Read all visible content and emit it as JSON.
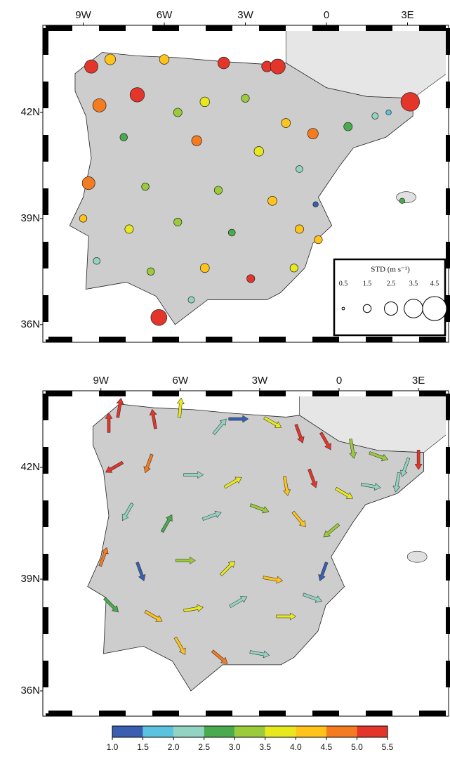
{
  "maps": [
    {
      "xticks": [
        {
          "value": -9,
          "label": "9W"
        },
        {
          "value": -6,
          "label": "6W"
        },
        {
          "value": -3,
          "label": "3W"
        },
        0,
        {
          "value": 3,
          "label": "3E"
        }
      ],
      "yticks": [
        {
          "value": 42,
          "label": "42N"
        },
        {
          "value": 39,
          "label": "39N"
        },
        {
          "value": 36,
          "label": "36N"
        }
      ],
      "legend": {
        "title": "STD (m s⁻¹)",
        "sizes": [
          0.5,
          1.5,
          2.5,
          3.5,
          4.5
        ]
      },
      "points": {
        "lon": [
          -8.7,
          -8.0,
          -6.0,
          -3.8,
          -2.2,
          -1.8,
          3.1,
          -8.4,
          -7.0,
          -5.5,
          -4.5,
          -3.0,
          -1.5,
          -0.5,
          0.8,
          1.8,
          2.3,
          -7.5,
          -4.8,
          -2.5,
          -1.0,
          -8.8,
          -6.7,
          -4.0,
          -2.0,
          -0.4,
          2.8,
          -9.0,
          -7.3,
          -5.5,
          -3.5,
          -1.0,
          -0.3,
          -8.5,
          -6.5,
          -4.5,
          -2.8,
          -1.2,
          -6.2,
          -5.0
        ],
        "lat": [
          43.3,
          43.5,
          43.5,
          43.4,
          43.3,
          43.3,
          42.3,
          42.2,
          42.5,
          42.0,
          42.3,
          42.4,
          41.7,
          41.4,
          41.6,
          41.9,
          42.0,
          41.3,
          41.2,
          40.9,
          40.4,
          40.0,
          39.9,
          39.8,
          39.5,
          39.4,
          39.5,
          39.0,
          38.7,
          38.9,
          38.6,
          38.7,
          38.4,
          37.8,
          37.5,
          37.6,
          37.3,
          37.6,
          36.2,
          36.7
        ],
        "std": [
          2.5,
          2.0,
          1.8,
          2.2,
          2.0,
          2.8,
          3.5,
          2.5,
          2.7,
          1.6,
          1.8,
          1.5,
          1.7,
          2.0,
          1.6,
          1.2,
          1.0,
          1.4,
          1.9,
          1.8,
          1.3,
          2.4,
          1.4,
          1.5,
          1.7,
          1.0,
          1.0,
          1.4,
          1.6,
          1.5,
          1.3,
          1.6,
          1.5,
          1.3,
          1.4,
          1.7,
          1.5,
          1.5,
          3.0,
          1.2
        ],
        "speed": [
          5.3,
          4.3,
          4.0,
          5.4,
          5.4,
          5.4,
          5.4,
          4.8,
          5.3,
          3.3,
          3.9,
          3.0,
          4.2,
          4.6,
          2.8,
          2.0,
          1.8,
          2.9,
          4.6,
          3.7,
          2.2,
          4.9,
          3.2,
          3.3,
          4.4,
          1.2,
          2.7,
          4.1,
          3.6,
          3.1,
          2.6,
          4.1,
          4.2,
          2.3,
          3.0,
          4.4,
          5.2,
          3.8,
          5.4,
          2.4
        ]
      }
    },
    {
      "xticks": [
        {
          "value": -9,
          "label": "9W"
        },
        {
          "value": -6,
          "label": "6W"
        },
        {
          "value": -3,
          "label": "3W"
        },
        0,
        {
          "value": 3,
          "label": "3E"
        }
      ],
      "yticks": [
        {
          "value": 42,
          "label": "42N"
        },
        {
          "value": 39,
          "label": "39N"
        },
        {
          "value": 36,
          "label": "36N"
        }
      ],
      "arrows": {
        "lon": [
          -8.7,
          -8.3,
          -7.0,
          -6.0,
          -4.5,
          -3.8,
          -2.5,
          -1.5,
          -0.5,
          0.5,
          1.5,
          2.5,
          3.0,
          -8.5,
          -7.2,
          -5.5,
          -4.0,
          -2.0,
          -1.0,
          0.2,
          1.2,
          2.2,
          -8.0,
          -6.5,
          -4.8,
          -3.0,
          -1.5,
          -0.3,
          -8.9,
          -7.5,
          -5.8,
          -4.2,
          -2.5,
          -0.6,
          -8.6,
          -7.0,
          -5.5,
          -3.8,
          -2.0,
          -1.0,
          -6.0,
          -4.5,
          -3.0
        ],
        "lat": [
          43.2,
          43.6,
          43.3,
          43.6,
          43.1,
          43.3,
          43.2,
          42.9,
          42.7,
          42.5,
          42.3,
          42.0,
          42.2,
          42.0,
          42.1,
          41.8,
          41.6,
          41.5,
          41.7,
          41.3,
          41.5,
          41.6,
          40.8,
          40.5,
          40.7,
          40.9,
          40.6,
          40.3,
          39.6,
          39.2,
          39.5,
          39.3,
          39.0,
          39.2,
          38.3,
          38.0,
          38.2,
          38.4,
          38.0,
          38.5,
          37.2,
          36.9,
          37.0
        ],
        "direction": [
          0,
          10,
          350,
          5,
          40,
          90,
          120,
          160,
          150,
          170,
          110,
          200,
          180,
          240,
          200,
          90,
          60,
          170,
          160,
          120,
          100,
          190,
          210,
          30,
          70,
          110,
          140,
          230,
          20,
          160,
          90,
          45,
          100,
          200,
          135,
          120,
          80,
          60,
          90,
          110,
          150,
          130,
          100
        ],
        "speed": [
          5.4,
          5.4,
          5.3,
          3.6,
          2.4,
          1.2,
          3.5,
          5.3,
          5.4,
          3.2,
          3.3,
          2.2,
          5.4,
          5.4,
          4.9,
          2.2,
          3.6,
          4.3,
          5.4,
          3.8,
          2.1,
          2.3,
          2.0,
          2.6,
          2.2,
          3.4,
          4.2,
          3.0,
          4.9,
          1.2,
          3.3,
          3.6,
          4.4,
          1.3,
          2.8,
          4.3,
          3.6,
          2.1,
          3.9,
          2.4,
          4.3,
          4.6,
          2.3
        ]
      }
    }
  ],
  "colorbar": {
    "colors": [
      "#3a5fb0",
      "#5bc3df",
      "#93d3c2",
      "#4aab4e",
      "#9bcb3b",
      "#e8e81f",
      "#ffc31a",
      "#f47b20",
      "#e4352b"
    ],
    "ticks": [
      {
        "value": 1,
        "label": "1.0"
      },
      1.5,
      {
        "value": 2,
        "label": "2.0"
      },
      2.5,
      {
        "value": 3,
        "label": "3.0"
      },
      3.5,
      {
        "value": 4,
        "label": "4.0"
      },
      4.5,
      {
        "value": 5,
        "label": "5.0"
      },
      5.5
    ]
  }
}
